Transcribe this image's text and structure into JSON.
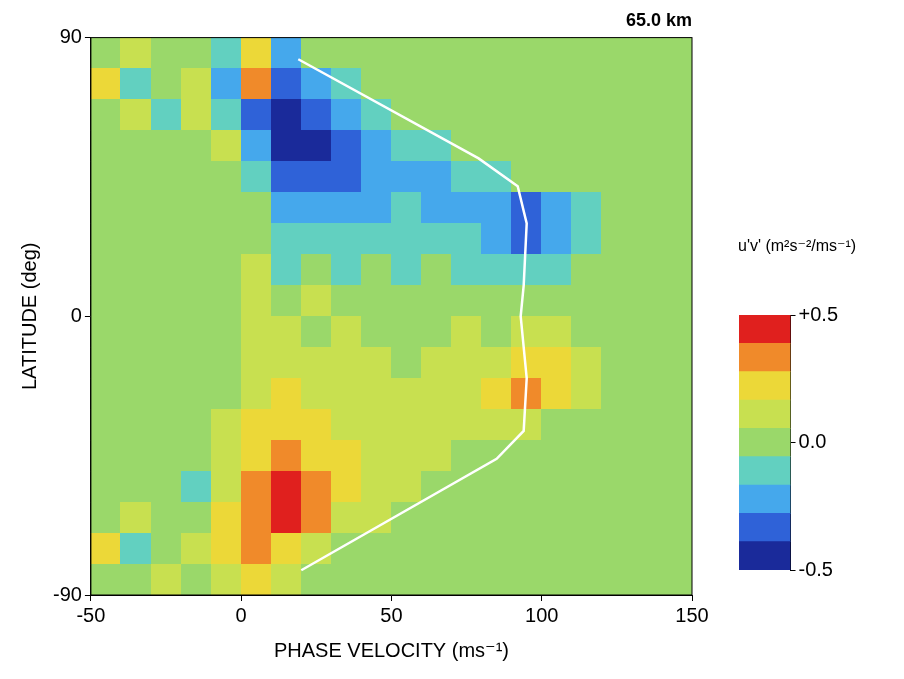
{
  "chart_data": {
    "type": "heatmap",
    "title": "65.0 km",
    "x_label": "PHASE VELOCITY (ms⁻¹)",
    "y_label": "LATITUDE (deg)",
    "xlim": [
      -50,
      150
    ],
    "ylim": [
      -90,
      90
    ],
    "xticks": [
      -50,
      0,
      50,
      100,
      150
    ],
    "yticks": [
      -90,
      0,
      90
    ],
    "grid": false,
    "x": [
      -45,
      -35,
      -25,
      -15,
      -5,
      5,
      15,
      25,
      35,
      45,
      55,
      65,
      75,
      85,
      95,
      105,
      115,
      125,
      135,
      145
    ],
    "y": [
      85,
      75,
      65,
      55,
      45,
      35,
      25,
      15,
      5,
      -5,
      -15,
      -25,
      -35,
      -45,
      -55,
      -65,
      -75,
      -85
    ],
    "values": [
      [
        0,
        0.1,
        0,
        0,
        -0.1,
        0.2,
        -0.2,
        0,
        0,
        0,
        0,
        0,
        0,
        0,
        0,
        0,
        0,
        0,
        0,
        0
      ],
      [
        0.2,
        -0.1,
        0,
        0.1,
        -0.2,
        0.3,
        -0.3,
        -0.2,
        -0.1,
        0,
        0,
        0,
        0,
        0,
        0,
        0,
        0,
        0,
        0,
        0
      ],
      [
        0,
        0.1,
        -0.1,
        0.1,
        -0.1,
        -0.3,
        -0.4,
        -0.3,
        -0.2,
        -0.1,
        0,
        0,
        0,
        0,
        0,
        0,
        0,
        0,
        0,
        0
      ],
      [
        0,
        0,
        0,
        0,
        0.1,
        -0.2,
        -0.4,
        -0.4,
        -0.3,
        -0.2,
        -0.1,
        -0.1,
        0,
        0,
        0,
        0,
        0,
        0,
        0,
        0
      ],
      [
        0,
        0,
        0,
        0,
        0,
        -0.1,
        -0.3,
        -0.3,
        -0.3,
        -0.2,
        -0.2,
        -0.2,
        -0.1,
        -0.1,
        0,
        0,
        0,
        0,
        0,
        0
      ],
      [
        0,
        0,
        0,
        0,
        0,
        0,
        -0.2,
        -0.2,
        -0.2,
        -0.2,
        -0.1,
        -0.2,
        -0.2,
        -0.2,
        -0.3,
        -0.2,
        -0.1,
        0,
        0,
        0
      ],
      [
        0,
        0,
        0,
        0,
        0,
        0,
        -0.1,
        -0.1,
        -0.1,
        -0.1,
        -0.1,
        -0.1,
        -0.1,
        -0.2,
        -0.3,
        -0.2,
        -0.1,
        0,
        0,
        0
      ],
      [
        0,
        0,
        0,
        0,
        0,
        0.1,
        -0.1,
        0,
        -0.1,
        0,
        -0.1,
        0,
        -0.1,
        -0.1,
        -0.1,
        -0.1,
        0,
        0,
        0,
        0
      ],
      [
        0,
        0,
        0,
        0,
        0,
        0.1,
        0,
        0.1,
        0,
        0,
        0,
        0,
        0,
        0,
        0,
        0,
        0,
        0,
        0,
        0
      ],
      [
        0,
        0,
        0,
        0,
        0,
        0.1,
        0.1,
        0,
        0.1,
        0,
        0,
        0,
        0.1,
        0,
        0.1,
        0.1,
        0,
        0,
        0,
        0
      ],
      [
        0,
        0,
        0,
        0,
        0,
        0.1,
        0.1,
        0.1,
        0.1,
        0.1,
        0,
        0.1,
        0.1,
        0.1,
        0.2,
        0.2,
        0.1,
        0,
        0,
        0
      ],
      [
        0,
        0,
        0,
        0,
        0,
        0.1,
        0.2,
        0.1,
        0.1,
        0.1,
        0.1,
        0.1,
        0.1,
        0.2,
        0.3,
        0.2,
        0.1,
        0,
        0,
        0
      ],
      [
        0,
        0,
        0,
        0,
        0.1,
        0.2,
        0.2,
        0.2,
        0.1,
        0.1,
        0.1,
        0.1,
        0.1,
        0.1,
        0.1,
        0,
        0,
        0,
        0,
        0
      ],
      [
        0,
        0,
        0,
        0,
        0.1,
        0.2,
        0.3,
        0.2,
        0.2,
        0.1,
        0.1,
        0.1,
        0,
        0,
        0,
        0,
        0,
        0,
        0,
        0
      ],
      [
        0,
        0,
        0,
        -0.1,
        0.1,
        0.3,
        0.4,
        0.3,
        0.2,
        0.1,
        0.1,
        0,
        0,
        0,
        0,
        0,
        0,
        0,
        0,
        0
      ],
      [
        0,
        0.1,
        0,
        0,
        0.2,
        0.3,
        0.4,
        0.3,
        0.1,
        0.1,
        0,
        0,
        0,
        0,
        0,
        0,
        0,
        0,
        0,
        0
      ],
      [
        0.2,
        -0.1,
        0,
        0.1,
        0.2,
        0.3,
        0.2,
        0.1,
        0,
        0,
        0,
        0,
        0,
        0,
        0,
        0,
        0,
        0,
        0,
        0
      ],
      [
        0,
        0,
        0.1,
        0,
        0.1,
        0.2,
        0.1,
        0,
        0,
        0,
        0,
        0,
        0,
        0,
        0,
        0,
        0,
        0,
        0,
        0
      ]
    ],
    "colorbar": {
      "label": "u'v' (m²s⁻²/ms⁻¹)",
      "range": [
        -0.5,
        0.5
      ],
      "ticks": [
        {
          "value": 0.5,
          "label": "+0.5"
        },
        {
          "value": 0,
          "label": "0.0"
        },
        {
          "value": -0.5,
          "label": "-0.5"
        }
      ]
    },
    "series": [
      {
        "type": "line",
        "color": "#ffffff",
        "x": [
          19,
          79,
          92,
          95,
          94,
          93,
          95,
          94,
          85,
          20
        ],
        "y": [
          83,
          51,
          42,
          30,
          10,
          0,
          -20,
          -37,
          -46,
          -82
        ]
      }
    ]
  }
}
